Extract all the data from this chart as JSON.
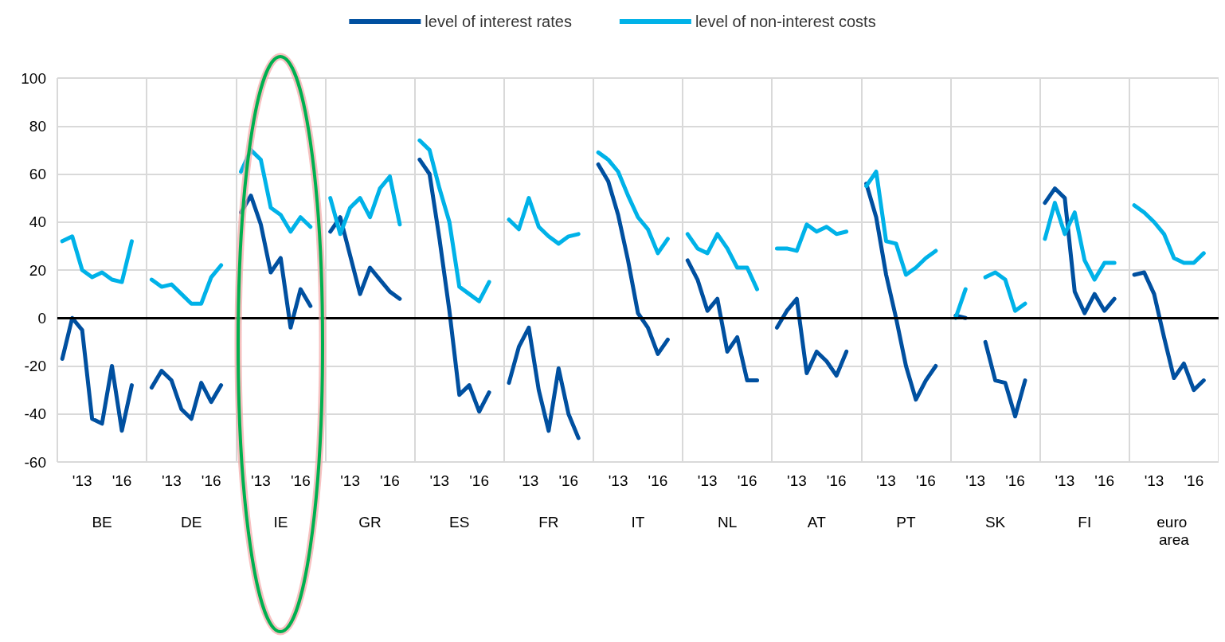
{
  "chart_data": {
    "type": "line",
    "categories": [
      null,
      null,
      "'13",
      null,
      null,
      null,
      "'16",
      null,
      null,
      null,
      null,
      "'13",
      null,
      null,
      null,
      "'16",
      null,
      null,
      null,
      null,
      "'13",
      null,
      null,
      null,
      "'16",
      null,
      null,
      null,
      null,
      "'13",
      null,
      null,
      null,
      "'16",
      null,
      null,
      null,
      null,
      "'13",
      null,
      null,
      null,
      "'16",
      null,
      null,
      null,
      null,
      "'13",
      null,
      null,
      null,
      "'16",
      null,
      null,
      null,
      null,
      "'13",
      null,
      null,
      null,
      "'16",
      null,
      null,
      null,
      null,
      "'13",
      null,
      null,
      null,
      "'16",
      null,
      null,
      null,
      null,
      "'13",
      null,
      null,
      null,
      "'16",
      null,
      null,
      null,
      null,
      "'13",
      null,
      null,
      null,
      "'16",
      null,
      null,
      null,
      null,
      "'13",
      null,
      null,
      null,
      "'16",
      null,
      null,
      null,
      null,
      "'13",
      null,
      null,
      null,
      "'16",
      null,
      null,
      null,
      null,
      "'13",
      null,
      null,
      null,
      "'16",
      null,
      null
    ],
    "series": [
      {
        "name": "level of interest rates",
        "color": "#0050a0",
        "values": [
          -17,
          0,
          -5,
          -42,
          -44,
          -20,
          -47,
          -28,
          null,
          -29,
          -22,
          -26,
          -38,
          -42,
          -27,
          -35,
          -28,
          null,
          44,
          51,
          39,
          19,
          25,
          -4,
          12,
          5,
          null,
          36,
          42,
          26,
          10,
          21,
          16,
          11,
          8,
          null,
          66,
          60,
          33,
          3,
          -32,
          -28,
          -39,
          -31,
          null,
          -27,
          -12,
          -4,
          -30,
          -47,
          -21,
          -40,
          -50,
          null,
          64,
          57,
          43,
          24,
          2,
          -4,
          -15,
          -9,
          null,
          24,
          16,
          3,
          8,
          -14,
          -8,
          -26,
          -26,
          null,
          -4,
          3,
          8,
          -23,
          -14,
          -18,
          -24,
          -14,
          null,
          56,
          42,
          18,
          0,
          -20,
          -34,
          -26,
          -20,
          null,
          1,
          0,
          null,
          -10,
          -26,
          -27,
          -41,
          -26,
          null,
          48,
          54,
          50,
          11,
          2,
          10,
          3,
          8,
          null,
          18,
          19,
          10,
          -8,
          -25,
          -19,
          -30,
          -26,
          null
        ]
      },
      {
        "name": "level of non-interest costs",
        "color": "#00b2e8",
        "values": [
          32,
          34,
          20,
          17,
          19,
          16,
          15,
          32,
          null,
          16,
          13,
          14,
          10,
          6,
          6,
          17,
          22,
          null,
          61,
          70,
          66,
          46,
          43,
          36,
          42,
          38,
          null,
          50,
          35,
          46,
          50,
          42,
          54,
          59,
          39,
          null,
          74,
          70,
          54,
          40,
          13,
          10,
          7,
          15,
          null,
          41,
          37,
          50,
          38,
          34,
          31,
          34,
          35,
          null,
          69,
          66,
          61,
          51,
          42,
          37,
          27,
          33,
          null,
          35,
          29,
          27,
          35,
          29,
          21,
          21,
          12,
          null,
          29,
          29,
          28,
          39,
          36,
          38,
          35,
          36,
          null,
          55,
          61,
          32,
          31,
          18,
          21,
          25,
          28,
          null,
          0,
          12,
          null,
          17,
          19,
          16,
          3,
          6,
          null,
          33,
          48,
          35,
          44,
          24,
          16,
          23,
          23,
          null,
          47,
          44,
          40,
          35,
          25,
          23,
          23,
          27,
          null
        ]
      }
    ],
    "annotations": [
      "BE",
      "DE",
      "IE",
      "GR",
      "ES",
      "FR",
      "IT",
      "NL",
      "AT",
      "PT",
      "SK",
      "FI",
      "euro area"
    ],
    "ylim": [
      -60,
      100
    ],
    "yticks": [
      -60,
      -40,
      -20,
      0,
      20,
      40,
      60,
      80,
      100
    ],
    "ref_lines": [
      {
        "axis": "y",
        "value": 0,
        "color": "#000000"
      }
    ],
    "grid": true,
    "legend": "top"
  }
}
